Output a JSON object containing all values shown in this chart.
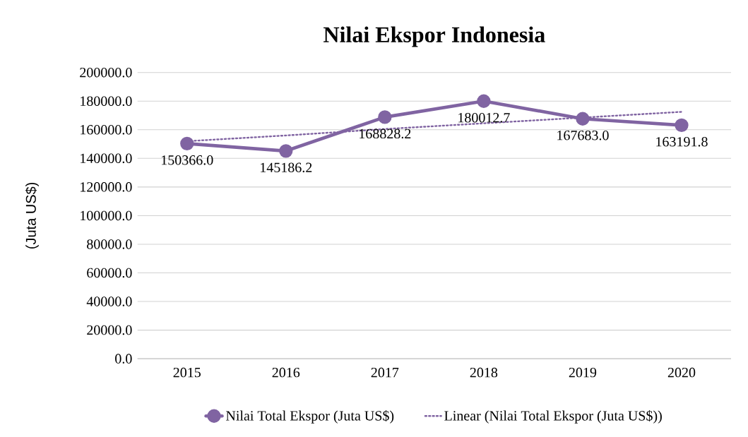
{
  "chart_data": {
    "type": "line",
    "title": "Nilai Ekspor Indonesia",
    "ylabel": "(Juta US$)",
    "categories": [
      "2015",
      "2016",
      "2017",
      "2018",
      "2019",
      "2020"
    ],
    "series": [
      {
        "name": "Nilai Total Ekspor (Juta US$)",
        "color": "#8064a2",
        "marker": "circle",
        "line_style": "solid",
        "values": [
          150366.0,
          145186.2,
          168828.2,
          180012.7,
          167683.0,
          163191.8
        ],
        "value_labels": [
          "150366.0",
          "145186.2",
          "168828.2",
          "180012.7",
          "167683.0",
          "163191.8"
        ]
      },
      {
        "name": "Linear (Nilai Total Ekspor (Juta US$))",
        "color": "#8064a2",
        "marker": "none",
        "line_style": "dotted",
        "values": [
          152000,
          156000,
          160500,
          164500,
          168500,
          172500
        ]
      }
    ],
    "ylim": [
      0,
      200000
    ],
    "yticks": [
      {
        "value": 0,
        "label": "0.0"
      },
      {
        "value": 20000,
        "label": "20000.0"
      },
      {
        "value": 40000,
        "label": "40000.0"
      },
      {
        "value": 60000,
        "label": "60000.0"
      },
      {
        "value": 80000,
        "label": "80000.0"
      },
      {
        "value": 100000,
        "label": "100000.0"
      },
      {
        "value": 120000,
        "label": "120000.0"
      },
      {
        "value": 140000,
        "label": "140000.0"
      },
      {
        "value": 160000,
        "label": "160000.0"
      },
      {
        "value": 180000,
        "label": "180000.0"
      },
      {
        "value": 200000,
        "label": "200000.0"
      }
    ],
    "grid": "y",
    "legend": "bottom"
  }
}
